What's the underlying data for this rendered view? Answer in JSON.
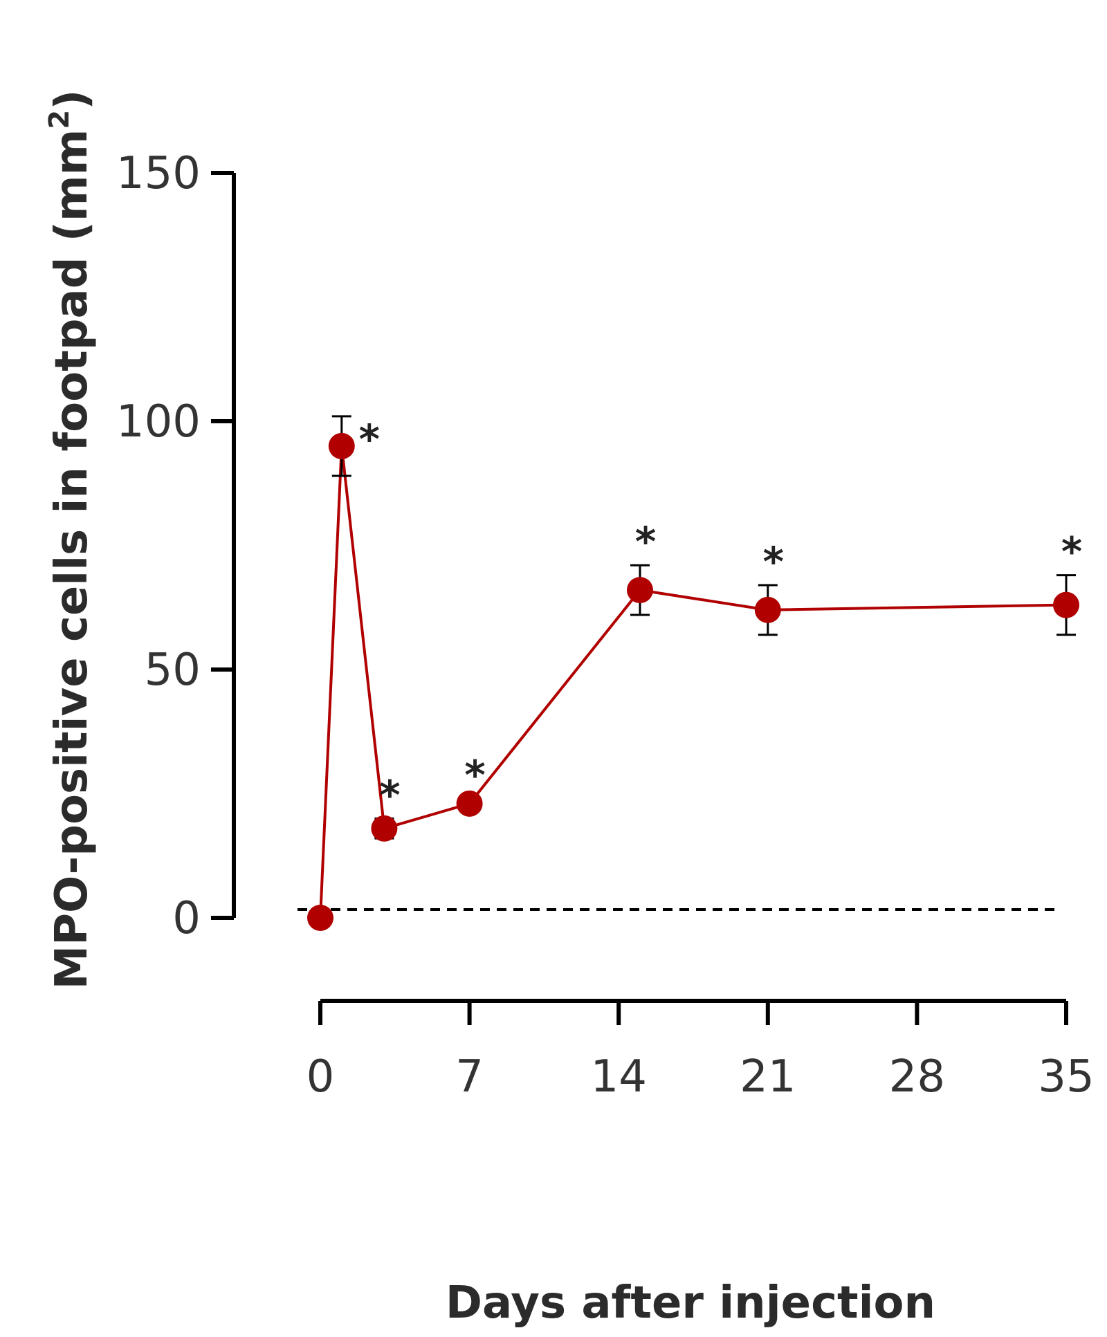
{
  "chart_data": {
    "type": "line",
    "xlabel": "Days after injection",
    "ylabel": "MPO-positive cells in footpad (mm",
    "ylabel_superscript": "2",
    "ylabel_close": ")",
    "x_ticks": [
      "0",
      "7",
      "14",
      "21",
      "28",
      "35"
    ],
    "y_ticks": [
      "0",
      "50",
      "100",
      "150"
    ],
    "xlim": [
      0,
      35
    ],
    "ylim": [
      0,
      150
    ],
    "grid": false,
    "baseline": {
      "value": 0,
      "style": "dashed"
    },
    "colors": {
      "series": "#b00000",
      "axis": "#000000"
    },
    "series": [
      {
        "x": [
          0,
          1,
          3,
          7,
          15,
          21,
          35
        ],
        "y": [
          0,
          95,
          18,
          23,
          66,
          62,
          63
        ],
        "error": [
          0,
          6,
          2,
          1,
          5,
          5,
          6
        ],
        "significance": [
          "",
          "*",
          "*",
          "*",
          "*",
          "*",
          "*"
        ]
      }
    ]
  }
}
